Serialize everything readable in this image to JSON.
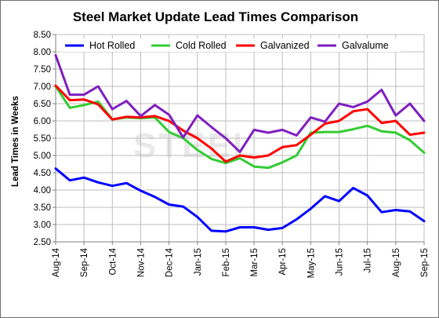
{
  "chart_data": {
    "type": "line",
    "title": "Steel Market Update Lead Times Comparison",
    "ylabel": "Lead Times in Weeks",
    "xlabel": "",
    "ylim": [
      2.5,
      8.5
    ],
    "yticks": [
      "2.50",
      "3.00",
      "3.50",
      "4.00",
      "4.50",
      "5.00",
      "5.50",
      "6.00",
      "6.50",
      "7.00",
      "7.50",
      "8.00",
      "8.50"
    ],
    "month_labels": [
      "Aug-14",
      "Sep-14",
      "Oct-14",
      "Nov-14",
      "Dec-14",
      "Jan-15",
      "Feb-15",
      "Mar-15",
      "Apr-15",
      "May-15",
      "Jun-15",
      "Jul-15",
      "Aug-15",
      "Sep-15"
    ],
    "x_per_month": 2,
    "grid": true,
    "legend_position": "top",
    "watermark": "STEEL",
    "series": [
      {
        "name": "Hot Rolled",
        "color": "#0000ff",
        "values": [
          4.62,
          4.28,
          4.36,
          4.22,
          4.12,
          4.2,
          3.98,
          3.8,
          3.58,
          3.52,
          3.22,
          2.82,
          2.8,
          2.92,
          2.92,
          2.85,
          2.9,
          3.15,
          3.46,
          3.82,
          3.68,
          4.06,
          3.84,
          3.36,
          3.42,
          3.38,
          3.1
        ]
      },
      {
        "name": "Cold Rolled",
        "color": "#33cc33",
        "values": [
          7.0,
          6.38,
          6.46,
          6.56,
          6.04,
          6.1,
          6.08,
          6.1,
          5.68,
          5.5,
          5.16,
          4.9,
          4.78,
          4.92,
          4.68,
          4.64,
          4.8,
          5.0,
          5.66,
          5.68,
          5.68,
          5.76,
          5.86,
          5.7,
          5.66,
          5.44,
          5.08
        ]
      },
      {
        "name": "Galvanized",
        "color": "#ff0000",
        "values": [
          7.02,
          6.6,
          6.62,
          6.48,
          6.04,
          6.12,
          6.1,
          6.14,
          6.0,
          5.72,
          5.5,
          5.2,
          4.82,
          5.0,
          4.94,
          5.0,
          5.24,
          5.3,
          5.6,
          5.92,
          6.0,
          6.28,
          6.34,
          5.94,
          6.0,
          5.6,
          5.66
        ]
      },
      {
        "name": "Galvalume",
        "color": "#7f1fbf",
        "values": [
          7.9,
          6.76,
          6.76,
          7.0,
          6.34,
          6.58,
          6.14,
          6.46,
          6.18,
          5.52,
          6.16,
          5.82,
          5.5,
          5.1,
          5.74,
          5.66,
          5.74,
          5.58,
          6.1,
          5.98,
          6.5,
          6.4,
          6.56,
          6.9,
          6.16,
          6.5,
          6.0
        ]
      }
    ]
  }
}
